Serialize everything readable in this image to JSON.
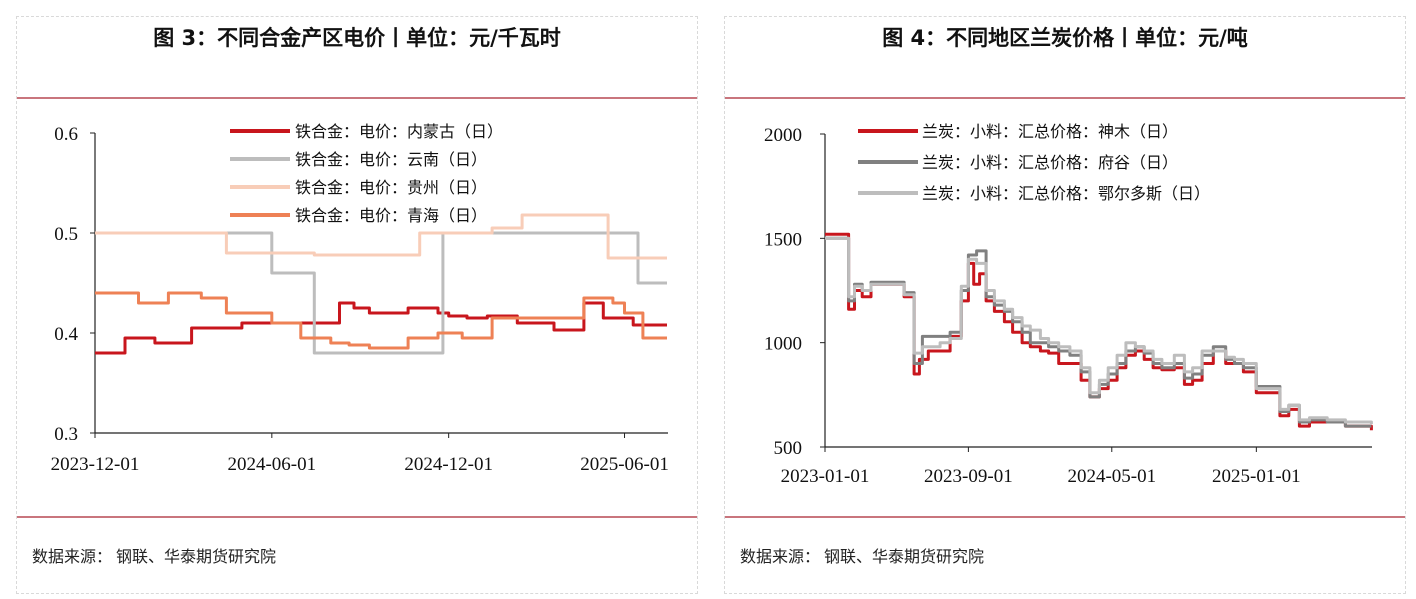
{
  "source_label": "数据来源：",
  "source_value": "钢联、华泰期货研究院",
  "chart_data": [
    {
      "type": "line",
      "title": "图 3：不同合金产区电价丨单位：元/千瓦时",
      "xlabel": "",
      "ylabel": "",
      "ylim": [
        0.3,
        0.6
      ],
      "xlim": [
        "2023-12-01",
        "2025-07-16"
      ],
      "yticks": [
        0.3,
        0.4,
        0.5,
        0.6
      ],
      "ytick_labels": [
        "0.3",
        "0.4",
        "0.5",
        "0.6"
      ],
      "xticks": [
        "2023-12-01",
        "2024-06-01",
        "2024-12-01",
        "2025-06-01"
      ],
      "legend_position": "top",
      "series": [
        {
          "name": "铁合金：电价：内蒙古（日）",
          "color": "#c8161d",
          "width": 3,
          "step": true,
          "x": [
            "2023-12-01",
            "2023-12-10",
            "2024-01-01",
            "2024-02-01",
            "2024-02-20",
            "2024-03-10",
            "2024-05-01",
            "2024-07-01",
            "2024-08-10",
            "2024-08-25",
            "2024-09-10",
            "2024-10-20",
            "2024-11-01",
            "2024-11-20",
            "2024-12-01",
            "2024-12-20",
            "2025-01-10",
            "2025-02-10",
            "2025-03-01",
            "2025-03-20",
            "2025-04-20",
            "2025-05-10",
            "2025-06-10",
            "2025-07-15"
          ],
          "y": [
            0.38,
            0.38,
            0.395,
            0.39,
            0.39,
            0.405,
            0.41,
            0.41,
            0.43,
            0.425,
            0.42,
            0.425,
            0.425,
            0.42,
            0.417,
            0.415,
            0.417,
            0.41,
            0.41,
            0.403,
            0.43,
            0.415,
            0.408,
            0.408
          ]
        },
        {
          "name": "铁合金：电价：云南（日）",
          "color": "#bdbdbd",
          "width": 3,
          "step": true,
          "x": [
            "2023-12-01",
            "2024-01-01",
            "2024-03-01",
            "2024-04-01",
            "2024-06-01",
            "2024-07-15",
            "2024-09-01",
            "2024-10-01",
            "2024-11-01",
            "2024-11-25",
            "2024-12-15",
            "2025-01-01",
            "2025-02-01",
            "2025-03-01",
            "2025-04-15",
            "2025-05-01",
            "2025-06-01",
            "2025-06-15",
            "2025-07-15"
          ],
          "y": [
            0.5,
            0.5,
            0.5,
            0.5,
            0.46,
            0.38,
            0.38,
            0.38,
            0.38,
            0.5,
            0.5,
            0.5,
            0.5,
            0.5,
            0.5,
            0.5,
            0.5,
            0.45,
            0.45
          ]
        },
        {
          "name": "铁合金：电价：贵州（日）",
          "color": "#f8cdb8",
          "width": 3,
          "step": true,
          "x": [
            "2023-12-01",
            "2024-03-01",
            "2024-04-15",
            "2024-06-01",
            "2024-07-15",
            "2024-08-15",
            "2024-09-15",
            "2024-10-15",
            "2024-11-01",
            "2024-12-15",
            "2025-01-15",
            "2025-02-15",
            "2025-03-15",
            "2025-04-01",
            "2025-04-20",
            "2025-05-15",
            "2025-06-15",
            "2025-07-15"
          ],
          "y": [
            0.5,
            0.5,
            0.48,
            0.48,
            0.478,
            0.478,
            0.478,
            0.478,
            0.5,
            0.5,
            0.505,
            0.518,
            0.518,
            0.518,
            0.518,
            0.475,
            0.475,
            0.475
          ]
        },
        {
          "name": "铁合金：电价：青海（日）",
          "color": "#ee8155",
          "width": 3,
          "step": true,
          "x": [
            "2023-12-01",
            "2024-01-01",
            "2024-01-15",
            "2024-02-15",
            "2024-03-01",
            "2024-03-20",
            "2024-04-15",
            "2024-05-01",
            "2024-06-01",
            "2024-07-01",
            "2024-08-01",
            "2024-08-20",
            "2024-09-10",
            "2024-10-01",
            "2024-10-20",
            "2024-11-20",
            "2024-12-15",
            "2025-01-15",
            "2025-02-01",
            "2025-02-20",
            "2025-03-20",
            "2025-04-20",
            "2025-05-01",
            "2025-05-20",
            "2025-06-01",
            "2025-06-20",
            "2025-07-15"
          ],
          "y": [
            0.44,
            0.44,
            0.43,
            0.44,
            0.44,
            0.435,
            0.42,
            0.42,
            0.41,
            0.395,
            0.39,
            0.388,
            0.385,
            0.385,
            0.395,
            0.4,
            0.395,
            0.415,
            0.415,
            0.415,
            0.415,
            0.435,
            0.435,
            0.43,
            0.42,
            0.395,
            0.395
          ]
        }
      ]
    },
    {
      "type": "line",
      "title": "图 4：不同地区兰炭价格丨单位：元/吨",
      "xlabel": "",
      "ylabel": "",
      "ylim": [
        500,
        2000
      ],
      "xlim": [
        "2023-01-01",
        "2025-07-16"
      ],
      "yticks": [
        500,
        1000,
        1500,
        2000
      ],
      "ytick_labels": [
        "500",
        "1000",
        "1500",
        "2000"
      ],
      "xticks": [
        "2023-01-01",
        "2023-09-01",
        "2024-05-01",
        "2025-01-01"
      ],
      "legend_position": "top",
      "series": [
        {
          "name": "兰炭：小料：汇总价格：神木（日）",
          "color": "#c8161d",
          "width": 3,
          "step": true,
          "x": [
            "2023-01-01",
            "2023-02-01",
            "2023-02-10",
            "2023-02-20",
            "2023-03-05",
            "2023-03-20",
            "2023-04-10",
            "2023-05-01",
            "2023-05-15",
            "2023-06-01",
            "2023-06-10",
            "2023-06-25",
            "2023-07-15",
            "2023-08-01",
            "2023-08-20",
            "2023-09-01",
            "2023-09-10",
            "2023-09-20",
            "2023-10-01",
            "2023-10-15",
            "2023-11-01",
            "2023-11-15",
            "2023-12-01",
            "2023-12-15",
            "2024-01-01",
            "2024-01-15",
            "2024-02-01",
            "2024-02-20",
            "2024-03-10",
            "2024-03-25",
            "2024-04-10",
            "2024-04-25",
            "2024-05-10",
            "2024-05-25",
            "2024-06-10",
            "2024-06-25",
            "2024-07-10",
            "2024-07-25",
            "2024-08-15",
            "2024-09-01",
            "2024-09-15",
            "2024-10-01",
            "2024-10-20",
            "2024-11-10",
            "2024-11-25",
            "2024-12-10",
            "2025-01-01",
            "2025-01-20",
            "2025-02-10",
            "2025-02-25",
            "2025-03-15",
            "2025-04-01",
            "2025-05-01",
            "2025-06-01",
            "2025-07-15"
          ],
          "y": [
            1520,
            1520,
            1160,
            1250,
            1220,
            1280,
            1280,
            1280,
            1220,
            850,
            920,
            960,
            960,
            1030,
            1200,
            1380,
            1280,
            1330,
            1200,
            1150,
            1100,
            1050,
            1000,
            980,
            960,
            950,
            900,
            900,
            820,
            740,
            780,
            820,
            880,
            940,
            960,
            920,
            880,
            870,
            880,
            800,
            820,
            900,
            960,
            900,
            900,
            860,
            760,
            760,
            650,
            680,
            600,
            620,
            620,
            600,
            580
          ]
        },
        {
          "name": "兰炭：小料：汇总价格：府谷（日）",
          "color": "#808080",
          "width": 3,
          "step": true,
          "x": [
            "2023-01-01",
            "2023-02-01",
            "2023-02-10",
            "2023-02-20",
            "2023-03-05",
            "2023-03-20",
            "2023-04-10",
            "2023-05-01",
            "2023-05-15",
            "2023-06-01",
            "2023-06-15",
            "2023-07-15",
            "2023-08-01",
            "2023-08-20",
            "2023-09-01",
            "2023-09-15",
            "2023-10-01",
            "2023-10-15",
            "2023-11-01",
            "2023-11-15",
            "2023-12-01",
            "2023-12-15",
            "2024-01-01",
            "2024-01-15",
            "2024-02-01",
            "2024-02-20",
            "2024-03-10",
            "2024-03-25",
            "2024-04-10",
            "2024-04-25",
            "2024-05-10",
            "2024-05-25",
            "2024-06-10",
            "2024-06-25",
            "2024-07-10",
            "2024-07-25",
            "2024-08-15",
            "2024-09-01",
            "2024-09-15",
            "2024-10-01",
            "2024-10-20",
            "2024-11-10",
            "2024-11-25",
            "2024-12-10",
            "2025-01-01",
            "2025-01-20",
            "2025-02-10",
            "2025-02-25",
            "2025-03-15",
            "2025-04-01",
            "2025-05-01",
            "2025-06-01",
            "2025-07-15"
          ],
          "y": [
            1500,
            1500,
            1200,
            1280,
            1250,
            1290,
            1290,
            1290,
            1240,
            900,
            1030,
            1030,
            1050,
            1250,
            1420,
            1440,
            1220,
            1180,
            1150,
            1100,
            1050,
            1000,
            1000,
            980,
            960,
            940,
            860,
            740,
            800,
            850,
            900,
            960,
            980,
            950,
            900,
            880,
            900,
            830,
            850,
            940,
            980,
            920,
            900,
            880,
            790,
            790,
            670,
            700,
            620,
            630,
            620,
            600,
            600
          ]
        },
        {
          "name": "兰炭：小料：汇总价格：鄂尔多斯（日）",
          "color": "#bdbdbd",
          "width": 3,
          "step": true,
          "x": [
            "2023-01-01",
            "2023-02-01",
            "2023-02-10",
            "2023-02-20",
            "2023-03-05",
            "2023-03-20",
            "2023-04-10",
            "2023-05-01",
            "2023-05-15",
            "2023-06-01",
            "2023-06-15",
            "2023-07-15",
            "2023-08-01",
            "2023-08-20",
            "2023-09-01",
            "2023-09-15",
            "2023-10-01",
            "2023-10-15",
            "2023-11-01",
            "2023-11-15",
            "2023-12-01",
            "2023-12-15",
            "2024-01-01",
            "2024-01-15",
            "2024-02-01",
            "2024-02-20",
            "2024-03-10",
            "2024-03-25",
            "2024-04-10",
            "2024-04-25",
            "2024-05-10",
            "2024-05-25",
            "2024-06-10",
            "2024-06-25",
            "2024-07-10",
            "2024-07-25",
            "2024-08-15",
            "2024-09-01",
            "2024-09-15",
            "2024-10-01",
            "2024-10-20",
            "2024-11-10",
            "2024-11-25",
            "2024-12-10",
            "2025-01-01",
            "2025-01-20",
            "2025-02-10",
            "2025-02-25",
            "2025-03-15",
            "2025-04-01",
            "2025-05-01",
            "2025-06-01",
            "2025-07-15"
          ],
          "y": [
            1500,
            1500,
            1220,
            1270,
            1250,
            1280,
            1280,
            1280,
            1230,
            950,
            980,
            1000,
            1020,
            1270,
            1400,
            1380,
            1250,
            1200,
            1160,
            1120,
            1080,
            1060,
            1020,
            1000,
            980,
            960,
            880,
            760,
            820,
            880,
            940,
            1000,
            980,
            960,
            920,
            900,
            940,
            860,
            880,
            960,
            960,
            930,
            920,
            900,
            780,
            780,
            680,
            700,
            630,
            640,
            630,
            620,
            610
          ]
        }
      ]
    }
  ]
}
